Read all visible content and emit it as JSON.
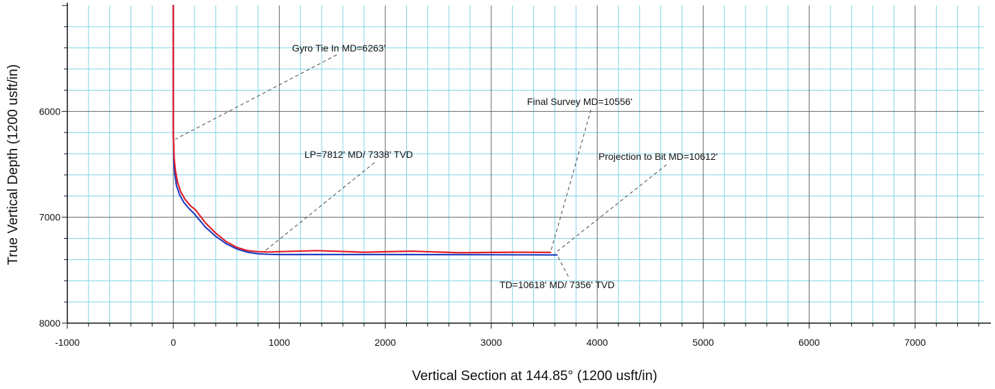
{
  "chart_data": {
    "type": "line",
    "xlabel": "Vertical Section at 144.85° (1200 usft/in)",
    "ylabel": "True Vertical Depth (1200 usft/in)",
    "xlim": [
      -1000,
      7650
    ],
    "ylim": [
      5000,
      8000
    ],
    "y_inverted": true,
    "grid": true,
    "x_ticks": [
      -1000,
      0,
      1000,
      2000,
      3000,
      4000,
      5000,
      6000,
      7000
    ],
    "y_ticks": [
      6000,
      7000,
      8000
    ],
    "legend": "none",
    "colors": {
      "plan": "#1f3fbf",
      "actual": "#e01b24",
      "grid_minor": "#7fd3e6",
      "grid_major": "#666666",
      "leader": "#444444"
    },
    "series": [
      {
        "color_key": "plan",
        "x": [
          0,
          0,
          5,
          15,
          30,
          60,
          100,
          150,
          200,
          300,
          400,
          500,
          600,
          700,
          800,
          900,
          1000,
          1500,
          2000,
          2500,
          3000,
          3500,
          3620
        ],
        "y": [
          5000,
          6200,
          6500,
          6600,
          6700,
          6790,
          6860,
          6920,
          6970,
          7090,
          7180,
          7250,
          7300,
          7330,
          7345,
          7350,
          7352,
          7352,
          7352,
          7353,
          7354,
          7355,
          7356
        ]
      },
      {
        "color_key": "actual",
        "x": [
          0,
          0,
          8,
          20,
          40,
          70,
          110,
          160,
          210,
          300,
          400,
          500,
          600,
          700,
          800,
          900,
          1000,
          1350,
          1800,
          2250,
          2700,
          3200,
          3560
        ],
        "y": [
          5000,
          6200,
          6450,
          6560,
          6670,
          6760,
          6830,
          6890,
          6930,
          7050,
          7150,
          7230,
          7285,
          7315,
          7325,
          7328,
          7325,
          7315,
          7330,
          7320,
          7335,
          7330,
          7332
        ]
      }
    ],
    "annotations": [
      {
        "text": "Gyro Tie In MD=6263'",
        "point": [
          20,
          6263
        ]
      },
      {
        "text": "LP=7812' MD/ 7338' TVD",
        "point": [
          850,
          7330
        ]
      },
      {
        "text": "Final Survey MD=10556'",
        "point": [
          3560,
          7330
        ]
      },
      {
        "text": "Projection to Bit MD=10612'",
        "point": [
          3600,
          7340
        ]
      },
      {
        "text": "TD=10618' MD/ 7356' TVD",
        "point": [
          3620,
          7356
        ]
      }
    ]
  }
}
